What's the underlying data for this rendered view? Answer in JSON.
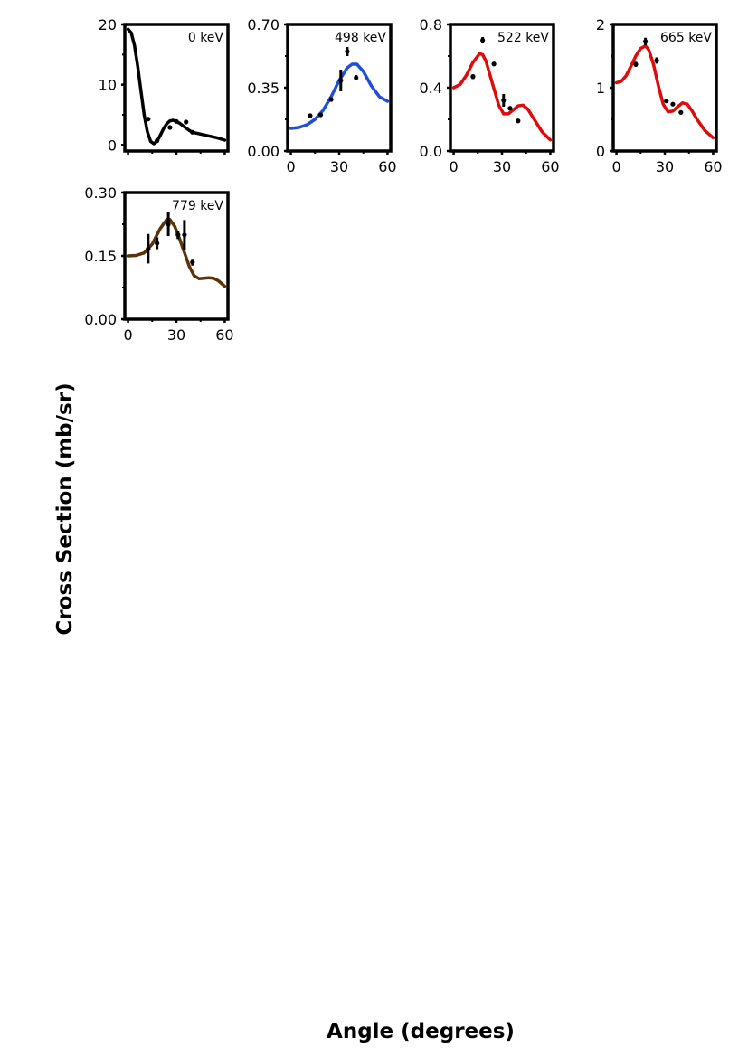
{
  "figure": {
    "xlabel": "Angle (degrees)",
    "ylabel": "Cross Section (mb/sr)"
  },
  "chart_data": [
    {
      "type": "line",
      "annotation": "0 keV",
      "xlim": [
        -2,
        62
      ],
      "ylim": [
        -1,
        20
      ],
      "xticks": [
        0,
        30,
        60
      ],
      "xticklabels": [
        "",
        "",
        ""
      ],
      "yticks": [
        0,
        10,
        20
      ],
      "yticklabels": [
        "0",
        "10",
        "20"
      ],
      "line_color": "#000000",
      "curve": {
        "x": [
          0,
          2,
          4,
          6,
          8,
          10,
          12,
          14,
          16,
          18,
          20,
          22,
          24,
          26,
          28,
          30,
          32,
          34,
          36,
          38,
          40,
          45,
          50,
          55,
          60
        ],
        "y": [
          19.2,
          18.6,
          16.5,
          13.0,
          9.0,
          5.0,
          2.2,
          0.6,
          0.2,
          0.6,
          1.6,
          2.7,
          3.5,
          4.0,
          4.1,
          3.9,
          3.6,
          3.2,
          2.8,
          2.4,
          2.1,
          1.8,
          1.5,
          1.2,
          0.8
        ]
      },
      "points": {
        "x": [
          12.5,
          18,
          26,
          30,
          36,
          40
        ],
        "y": [
          4.3,
          0.7,
          2.9,
          3.9,
          3.8,
          2.1
        ],
        "err": [
          0.15,
          0.2,
          0.15,
          0.15,
          0.15,
          0.15
        ]
      }
    },
    {
      "type": "line",
      "annotation": "498 keV",
      "xlim": [
        -2,
        62
      ],
      "ylim": [
        0,
        0.7
      ],
      "xticks": [
        0,
        30,
        60
      ],
      "xticklabels": [
        "0",
        "30",
        "60"
      ],
      "yticks": [
        0,
        0.35,
        0.7
      ],
      "yticklabels": [
        "0.00",
        "0.35",
        "0.70"
      ],
      "line_color": "#1f4fd8",
      "curve": {
        "x": [
          0,
          5,
          10,
          15,
          20,
          25,
          30,
          35,
          38,
          41,
          45,
          50,
          55,
          60
        ],
        "y": [
          0.125,
          0.13,
          0.145,
          0.175,
          0.225,
          0.3,
          0.39,
          0.46,
          0.48,
          0.48,
          0.44,
          0.36,
          0.3,
          0.275
        ]
      },
      "points": {
        "x": [
          12,
          18.5,
          25,
          31,
          35,
          40.5
        ],
        "y": [
          0.195,
          0.2,
          0.285,
          0.39,
          0.55,
          0.405
        ],
        "err": [
          0.012,
          0.01,
          0.012,
          0.06,
          0.025,
          0.015
        ]
      }
    },
    {
      "type": "line",
      "annotation": "522 keV",
      "xlim": [
        -2,
        62
      ],
      "ylim": [
        0,
        0.8
      ],
      "xticks": [
        0,
        30,
        60
      ],
      "xticklabels": [
        "0",
        "30",
        "60"
      ],
      "yticks": [
        0,
        0.4,
        0.8
      ],
      "yticklabels": [
        "0.0",
        "0.4",
        "0.8"
      ],
      "line_color": "#dd0b0b",
      "curve": {
        "x": [
          0,
          4,
          8,
          12,
          16,
          18,
          20,
          24,
          28,
          31,
          34,
          37,
          40,
          43,
          46,
          50,
          55,
          60
        ],
        "y": [
          0.4,
          0.42,
          0.48,
          0.56,
          0.615,
          0.61,
          0.57,
          0.43,
          0.29,
          0.235,
          0.235,
          0.26,
          0.285,
          0.29,
          0.265,
          0.2,
          0.12,
          0.07
        ]
      },
      "points": {
        "x": [
          12,
          18,
          25,
          31,
          35,
          40
        ],
        "y": [
          0.47,
          0.7,
          0.55,
          0.32,
          0.27,
          0.19
        ],
        "err": [
          0.015,
          0.02,
          0.012,
          0.04,
          0.012,
          0.008
        ]
      }
    },
    {
      "type": "line",
      "annotation": "665 keV",
      "xlim": [
        -2,
        62
      ],
      "ylim": [
        0,
        2
      ],
      "xticks": [
        0,
        30,
        60
      ],
      "xticklabels": [
        "0",
        "30",
        "60"
      ],
      "yticks": [
        0,
        1,
        2
      ],
      "yticklabels": [
        "0",
        "1",
        "2"
      ],
      "line_color": "#dd0b0b",
      "curve": {
        "x": [
          0,
          3,
          6,
          9,
          12,
          15,
          18,
          20,
          23,
          26,
          29,
          32,
          35,
          38,
          41,
          44,
          47,
          50,
          55,
          60
        ],
        "y": [
          1.08,
          1.1,
          1.19,
          1.34,
          1.5,
          1.62,
          1.66,
          1.6,
          1.37,
          1.03,
          0.74,
          0.62,
          0.63,
          0.7,
          0.76,
          0.74,
          0.63,
          0.5,
          0.32,
          0.21
        ]
      },
      "points": {
        "x": [
          12,
          18,
          25,
          31,
          35,
          40
        ],
        "y": [
          1.37,
          1.73,
          1.43,
          0.79,
          0.74,
          0.61
        ],
        "err": [
          0.04,
          0.06,
          0.05,
          0.02,
          0.02,
          0.02
        ]
      }
    },
    {
      "type": "line",
      "annotation": "779 keV",
      "xlim": [
        -2,
        62
      ],
      "ylim": [
        0,
        0.3
      ],
      "xticks": [
        0,
        30,
        60
      ],
      "xticklabels": [
        "0",
        "30",
        "60"
      ],
      "yticks": [
        0,
        0.15,
        0.3
      ],
      "yticklabels": [
        "0.00",
        "0.15",
        "0.30"
      ],
      "line_color": "#5c3208",
      "curve": {
        "x": [
          0,
          5,
          10,
          15,
          20,
          24,
          26,
          29,
          32,
          35,
          38,
          41,
          44,
          47,
          50,
          53,
          56,
          60
        ],
        "y": [
          0.15,
          0.151,
          0.157,
          0.178,
          0.215,
          0.236,
          0.236,
          0.22,
          0.19,
          0.158,
          0.125,
          0.103,
          0.096,
          0.097,
          0.098,
          0.097,
          0.091,
          0.078
        ]
      },
      "points": {
        "x": [
          12.5,
          18,
          25,
          31,
          35,
          40
        ],
        "y": [
          0.167,
          0.18,
          0.225,
          0.2,
          0.2,
          0.135
        ],
        "err": [
          0.035,
          0.014,
          0.028,
          0.01,
          0.035,
          0.008
        ]
      }
    }
  ]
}
